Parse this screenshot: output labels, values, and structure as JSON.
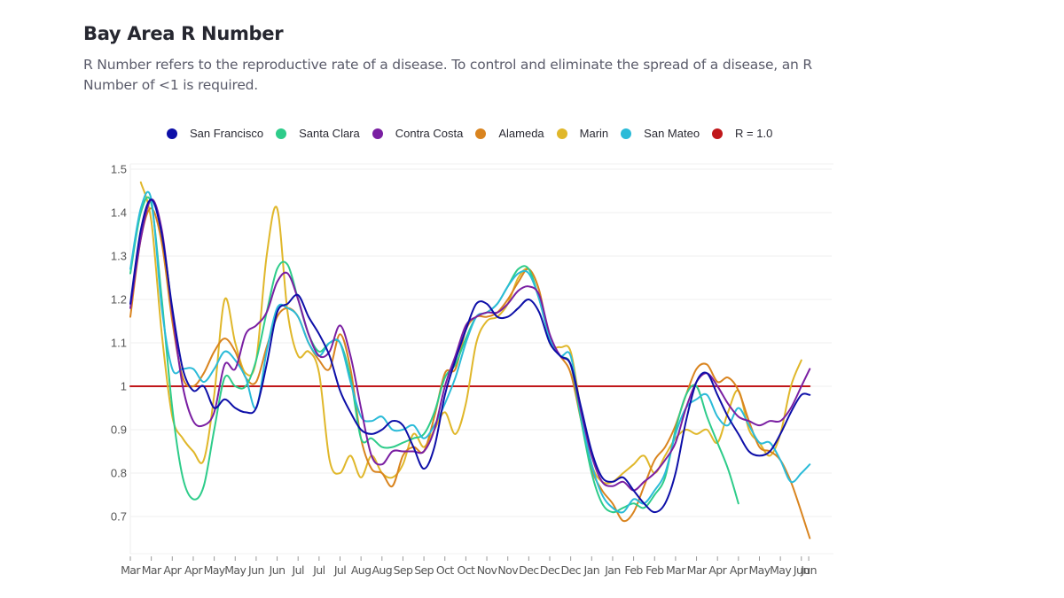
{
  "header": {
    "title": "Bay Area R Number",
    "subtitle": "R Number refers to the reproductive rate of a disease. To control and eliminate the spread of a disease, an R Number of <1 is required."
  },
  "chart_data": {
    "type": "line",
    "title": "Bay Area R Number",
    "xlabel": "",
    "ylabel": "",
    "ylim": [
      0.6,
      1.5
    ],
    "yticks": [
      1.5,
      1.4,
      1.3,
      1.2,
      1.1,
      1,
      0.9,
      0.8,
      0.7
    ],
    "ytick_labels": [
      "1.5",
      "1.4",
      "1.3",
      "1.2",
      "1.1",
      "1",
      "0.9",
      "0.8",
      "0.7"
    ],
    "grid": true,
    "legend_position": "top",
    "x_tick_labels": [
      "Mar",
      "Mar",
      "Apr",
      "Apr",
      "May",
      "May",
      "Jun",
      "Jun",
      "Jul",
      "Jul",
      "Jul",
      "Aug",
      "Aug",
      "Sep",
      "Sep",
      "Oct",
      "Oct",
      "Nov",
      "Nov",
      "Dec",
      "Dec",
      "Dec",
      "Jan",
      "Jan",
      "Feb",
      "Feb",
      "Mar",
      "Mar",
      "Apr",
      "Apr",
      "May",
      "May",
      "Jun",
      "Jun"
    ],
    "x_tick_positions": [
      0,
      1,
      2,
      3,
      4,
      5,
      6,
      7,
      8,
      9,
      10,
      11,
      12,
      13,
      14,
      15,
      16,
      17,
      18,
      19,
      20,
      21,
      22,
      23,
      24,
      25,
      26,
      27,
      28,
      29,
      30,
      31,
      32,
      32.35
    ],
    "x_range": [
      0,
      33.5
    ],
    "series": [
      {
        "name": "San Francisco",
        "color": "#0d0fa8",
        "x": [
          0,
          0.5,
          1,
          1.5,
          2,
          2.5,
          3,
          3.5,
          4,
          4.5,
          5,
          5.5,
          6,
          6.5,
          7,
          7.5,
          8,
          8.5,
          9,
          9.5,
          10,
          10.5,
          11,
          11.5,
          12,
          12.5,
          13,
          13.5,
          14,
          14.5,
          15,
          15.5,
          16,
          16.5,
          17,
          17.5,
          18,
          18.5,
          19,
          19.5,
          20,
          20.5,
          21,
          21.5,
          22,
          22.5,
          23,
          23.5,
          24,
          24.5,
          25,
          25.5,
          26,
          26.5,
          27,
          27.5,
          28,
          28.5,
          29,
          29.5,
          30,
          30.5,
          31,
          31.5,
          32,
          32.4
        ],
        "y": [
          1.19,
          1.36,
          1.43,
          1.35,
          1.18,
          1.04,
          0.99,
          1.0,
          0.95,
          0.97,
          0.95,
          0.94,
          0.95,
          1.05,
          1.17,
          1.19,
          1.21,
          1.16,
          1.12,
          1.07,
          0.99,
          0.94,
          0.9,
          0.89,
          0.9,
          0.92,
          0.91,
          0.86,
          0.81,
          0.86,
          0.98,
          1.06,
          1.13,
          1.19,
          1.19,
          1.16,
          1.16,
          1.18,
          1.2,
          1.17,
          1.1,
          1.07,
          1.05,
          0.95,
          0.85,
          0.79,
          0.78,
          0.79,
          0.76,
          0.73,
          0.71,
          0.73,
          0.8,
          0.92,
          1.01,
          1.03,
          0.98,
          0.93,
          0.89,
          0.85,
          0.84,
          0.85,
          0.89,
          0.94,
          0.98,
          0.98
        ]
      },
      {
        "name": "Santa Clara",
        "color": "#2ecc8a",
        "x": [
          0,
          0.5,
          1,
          1.5,
          2,
          2.5,
          3,
          3.5,
          4,
          4.5,
          5,
          5.5,
          6,
          6.5,
          7,
          7.5,
          8,
          8.5,
          9,
          9.5,
          10,
          10.5,
          11,
          11.5,
          12,
          12.5,
          13,
          13.5,
          14,
          14.5,
          15,
          15.5,
          16,
          16.5,
          17,
          17.5,
          18,
          18.5,
          19,
          19.5,
          20,
          20.5,
          21,
          21.5,
          22,
          22.5,
          23,
          23.5,
          24,
          24.5,
          25,
          25.5,
          26,
          26.5,
          27,
          27.5,
          28,
          28.5,
          29
        ],
        "y": [
          1.26,
          1.4,
          1.42,
          1.2,
          0.95,
          0.79,
          0.74,
          0.77,
          0.9,
          1.02,
          1.0,
          1.0,
          1.06,
          1.17,
          1.27,
          1.28,
          1.2,
          1.12,
          1.08,
          1.1,
          1.1,
          1.02,
          0.88,
          0.88,
          0.86,
          0.86,
          0.87,
          0.88,
          0.89,
          0.94,
          1.02,
          1.05,
          1.11,
          1.16,
          1.17,
          1.19,
          1.23,
          1.27,
          1.27,
          1.2,
          1.11,
          1.07,
          1.05,
          0.92,
          0.8,
          0.73,
          0.71,
          0.72,
          0.73,
          0.72,
          0.75,
          0.79,
          0.9,
          0.98,
          1.0,
          0.93,
          0.87,
          0.81,
          0.73
        ]
      },
      {
        "name": "Contra Costa",
        "color": "#7a1fa2",
        "x": [
          0,
          0.5,
          1,
          1.5,
          2,
          2.5,
          3,
          3.5,
          4,
          4.5,
          5,
          5.5,
          6,
          6.5,
          7,
          7.5,
          8,
          8.5,
          9,
          9.5,
          10,
          10.5,
          11,
          11.5,
          12,
          12.5,
          13,
          13.5,
          14,
          14.5,
          15,
          15.5,
          16,
          16.5,
          17,
          17.5,
          18,
          18.5,
          19,
          19.5,
          20,
          20.5,
          21,
          21.5,
          22,
          22.5,
          23,
          23.5,
          24,
          24.5,
          25,
          25.5,
          26,
          26.5,
          27,
          27.5,
          28,
          28.5,
          29,
          29.5,
          30,
          30.5,
          31,
          31.5,
          32,
          32.4
        ],
        "y": [
          1.18,
          1.34,
          1.43,
          1.36,
          1.17,
          1.0,
          0.92,
          0.91,
          0.94,
          1.05,
          1.04,
          1.12,
          1.14,
          1.17,
          1.24,
          1.26,
          1.2,
          1.12,
          1.07,
          1.08,
          1.14,
          1.07,
          0.95,
          0.84,
          0.82,
          0.85,
          0.85,
          0.85,
          0.85,
          0.9,
          1.0,
          1.07,
          1.14,
          1.16,
          1.17,
          1.17,
          1.19,
          1.22,
          1.23,
          1.21,
          1.12,
          1.07,
          1.05,
          0.94,
          0.84,
          0.78,
          0.77,
          0.78,
          0.76,
          0.78,
          0.8,
          0.83,
          0.87,
          0.95,
          1.01,
          1.03,
          1.0,
          0.96,
          0.93,
          0.92,
          0.91,
          0.92,
          0.92,
          0.95,
          1.0,
          1.04
        ]
      },
      {
        "name": "Alameda",
        "color": "#d9841f",
        "x": [
          0,
          0.5,
          1,
          1.5,
          2,
          2.5,
          3,
          3.5,
          4,
          4.5,
          5,
          5.5,
          6,
          6.5,
          7,
          7.5,
          8,
          8.5,
          9,
          9.5,
          10,
          10.5,
          11,
          11.5,
          12,
          12.5,
          13,
          13.5,
          14,
          14.5,
          15,
          15.5,
          16,
          16.5,
          17,
          17.5,
          18,
          18.5,
          19,
          19.5,
          20,
          20.5,
          21,
          21.5,
          22,
          22.5,
          23,
          23.5,
          24,
          24.5,
          25,
          25.5,
          26,
          26.5,
          27,
          27.5,
          28,
          28.5,
          29,
          29.5,
          30,
          30.5,
          31,
          31.5,
          32,
          32.4
        ],
        "y": [
          1.16,
          1.34,
          1.41,
          1.33,
          1.15,
          1.02,
          1.0,
          1.03,
          1.08,
          1.11,
          1.08,
          1.02,
          1.01,
          1.09,
          1.16,
          1.18,
          1.16,
          1.1,
          1.06,
          1.04,
          1.12,
          1.04,
          0.88,
          0.81,
          0.8,
          0.77,
          0.84,
          0.86,
          0.85,
          0.93,
          1.03,
          1.04,
          1.13,
          1.16,
          1.16,
          1.17,
          1.2,
          1.24,
          1.27,
          1.22,
          1.11,
          1.07,
          1.03,
          0.92,
          0.81,
          0.76,
          0.73,
          0.69,
          0.71,
          0.77,
          0.83,
          0.86,
          0.91,
          0.98,
          1.04,
          1.05,
          1.01,
          1.02,
          0.99,
          0.92,
          0.86,
          0.85,
          0.83,
          0.78,
          0.71,
          0.65
        ]
      },
      {
        "name": "Marin",
        "color": "#e0b72a",
        "x": [
          0.5,
          1,
          1.5,
          2,
          2.5,
          3,
          3.5,
          4,
          4.5,
          5,
          5.5,
          6,
          6.5,
          7,
          7.5,
          8,
          8.5,
          9,
          9.5,
          10,
          10.5,
          11,
          11.5,
          12,
          12.5,
          13,
          13.5,
          14,
          14.5,
          15,
          15.5,
          16,
          16.5,
          17,
          17.5,
          18,
          18.5,
          19,
          19.5,
          20,
          20.5,
          21,
          21.5,
          22,
          22.5,
          23,
          23.5,
          24,
          24.5,
          25,
          25.5,
          26,
          26.5,
          27,
          27.5,
          28,
          28.5,
          29,
          29.5,
          30,
          30.5,
          31,
          31.5,
          32
        ],
        "y": [
          1.47,
          1.38,
          1.12,
          0.93,
          0.88,
          0.85,
          0.83,
          0.98,
          1.2,
          1.1,
          1.03,
          1.06,
          1.3,
          1.41,
          1.17,
          1.07,
          1.08,
          1.03,
          0.83,
          0.8,
          0.84,
          0.79,
          0.84,
          0.8,
          0.79,
          0.82,
          0.89,
          0.86,
          0.9,
          0.94,
          0.89,
          0.96,
          1.1,
          1.15,
          1.16,
          1.19,
          1.25,
          1.27,
          1.22,
          1.1,
          1.09,
          1.08,
          0.94,
          0.82,
          0.78,
          0.78,
          0.8,
          0.82,
          0.84,
          0.8,
          0.84,
          0.88,
          0.9,
          0.89,
          0.9,
          0.87,
          0.94,
          0.99,
          0.9,
          0.87,
          0.84,
          0.89,
          1.0,
          1.06
        ]
      },
      {
        "name": "San Mateo",
        "color": "#2bbbd8",
        "x": [
          0,
          0.5,
          1,
          1.5,
          2,
          2.5,
          3,
          3.5,
          4,
          4.5,
          5,
          5.5,
          6,
          6.5,
          7,
          7.5,
          8,
          8.5,
          9,
          9.5,
          10,
          10.5,
          11,
          11.5,
          12,
          12.5,
          13,
          13.5,
          14,
          14.5,
          15,
          15.5,
          16,
          16.5,
          17,
          17.5,
          18,
          18.5,
          19,
          19.5,
          20,
          20.5,
          21,
          21.5,
          22,
          22.5,
          23,
          23.5,
          24,
          24.5,
          25,
          25.5,
          26,
          26.5,
          27,
          27.5,
          28,
          28.5,
          29,
          29.5,
          30,
          30.5,
          31,
          31.5,
          32,
          32.4
        ],
        "y": [
          1.27,
          1.41,
          1.43,
          1.18,
          1.04,
          1.04,
          1.04,
          1.01,
          1.04,
          1.08,
          1.06,
          1.02,
          0.95,
          1.08,
          1.18,
          1.18,
          1.16,
          1.1,
          1.07,
          1.1,
          1.1,
          1.01,
          0.93,
          0.92,
          0.93,
          0.9,
          0.9,
          0.91,
          0.88,
          0.91,
          0.96,
          1.02,
          1.1,
          1.16,
          1.17,
          1.19,
          1.23,
          1.26,
          1.26,
          1.2,
          1.11,
          1.07,
          1.07,
          0.93,
          0.82,
          0.75,
          0.72,
          0.71,
          0.74,
          0.73,
          0.76,
          0.8,
          0.89,
          0.95,
          0.97,
          0.98,
          0.93,
          0.91,
          0.95,
          0.91,
          0.87,
          0.87,
          0.83,
          0.78,
          0.8,
          0.82
        ]
      },
      {
        "name": "R = 1.0",
        "color": "#c0171a",
        "x": [
          0,
          32.4
        ],
        "y": [
          1.0,
          1.0
        ]
      }
    ]
  }
}
